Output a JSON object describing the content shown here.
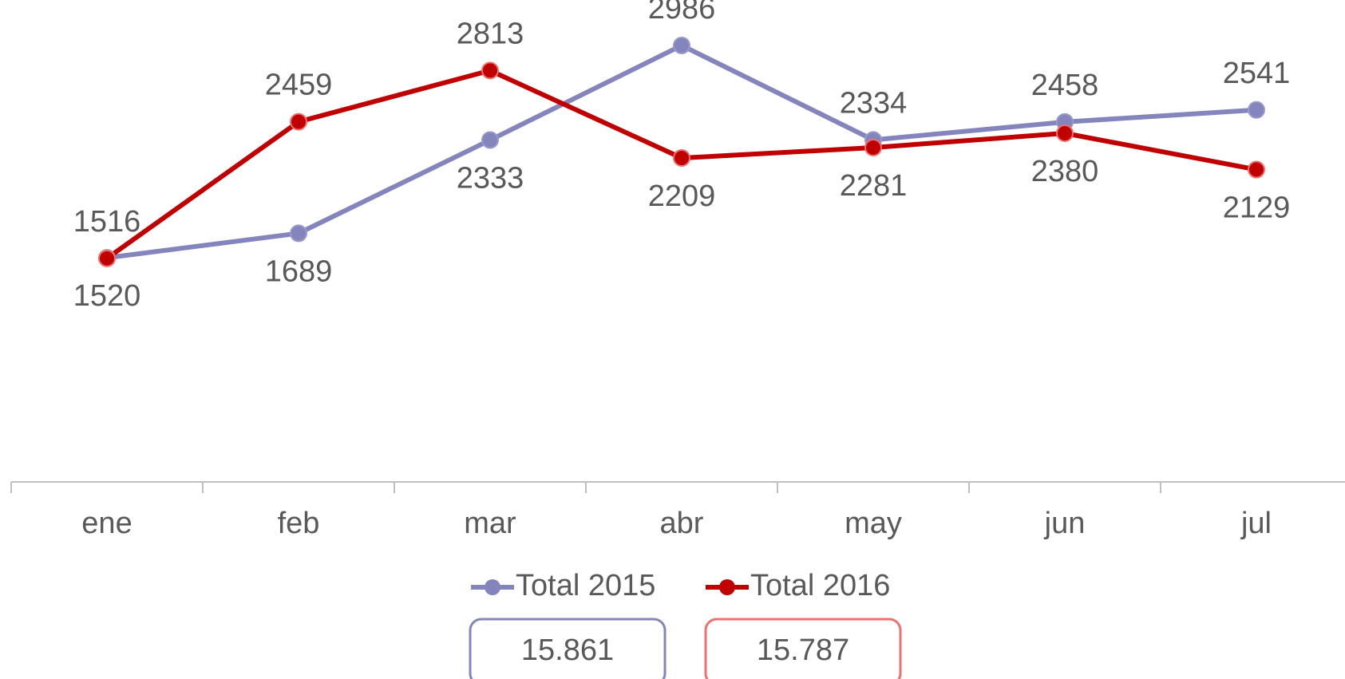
{
  "chart_data": {
    "type": "line",
    "categories": [
      "ene",
      "feb",
      "mar",
      "abr",
      "may",
      "jun",
      "jul"
    ],
    "series": [
      {
        "name": "Total 2015",
        "color": "#8585bd",
        "values": [
          1520,
          1689,
          2333,
          2986,
          2334,
          2458,
          2541
        ]
      },
      {
        "name": "Total 2016",
        "color": "#c00000",
        "values": [
          1516,
          2459,
          2813,
          2209,
          2281,
          2380,
          2129
        ]
      }
    ],
    "ylim": [
      0,
      3300
    ],
    "totals": [
      {
        "label": "15.861",
        "color": "#8585bd"
      },
      {
        "label": "15.787",
        "color": "#f07070"
      }
    ]
  }
}
